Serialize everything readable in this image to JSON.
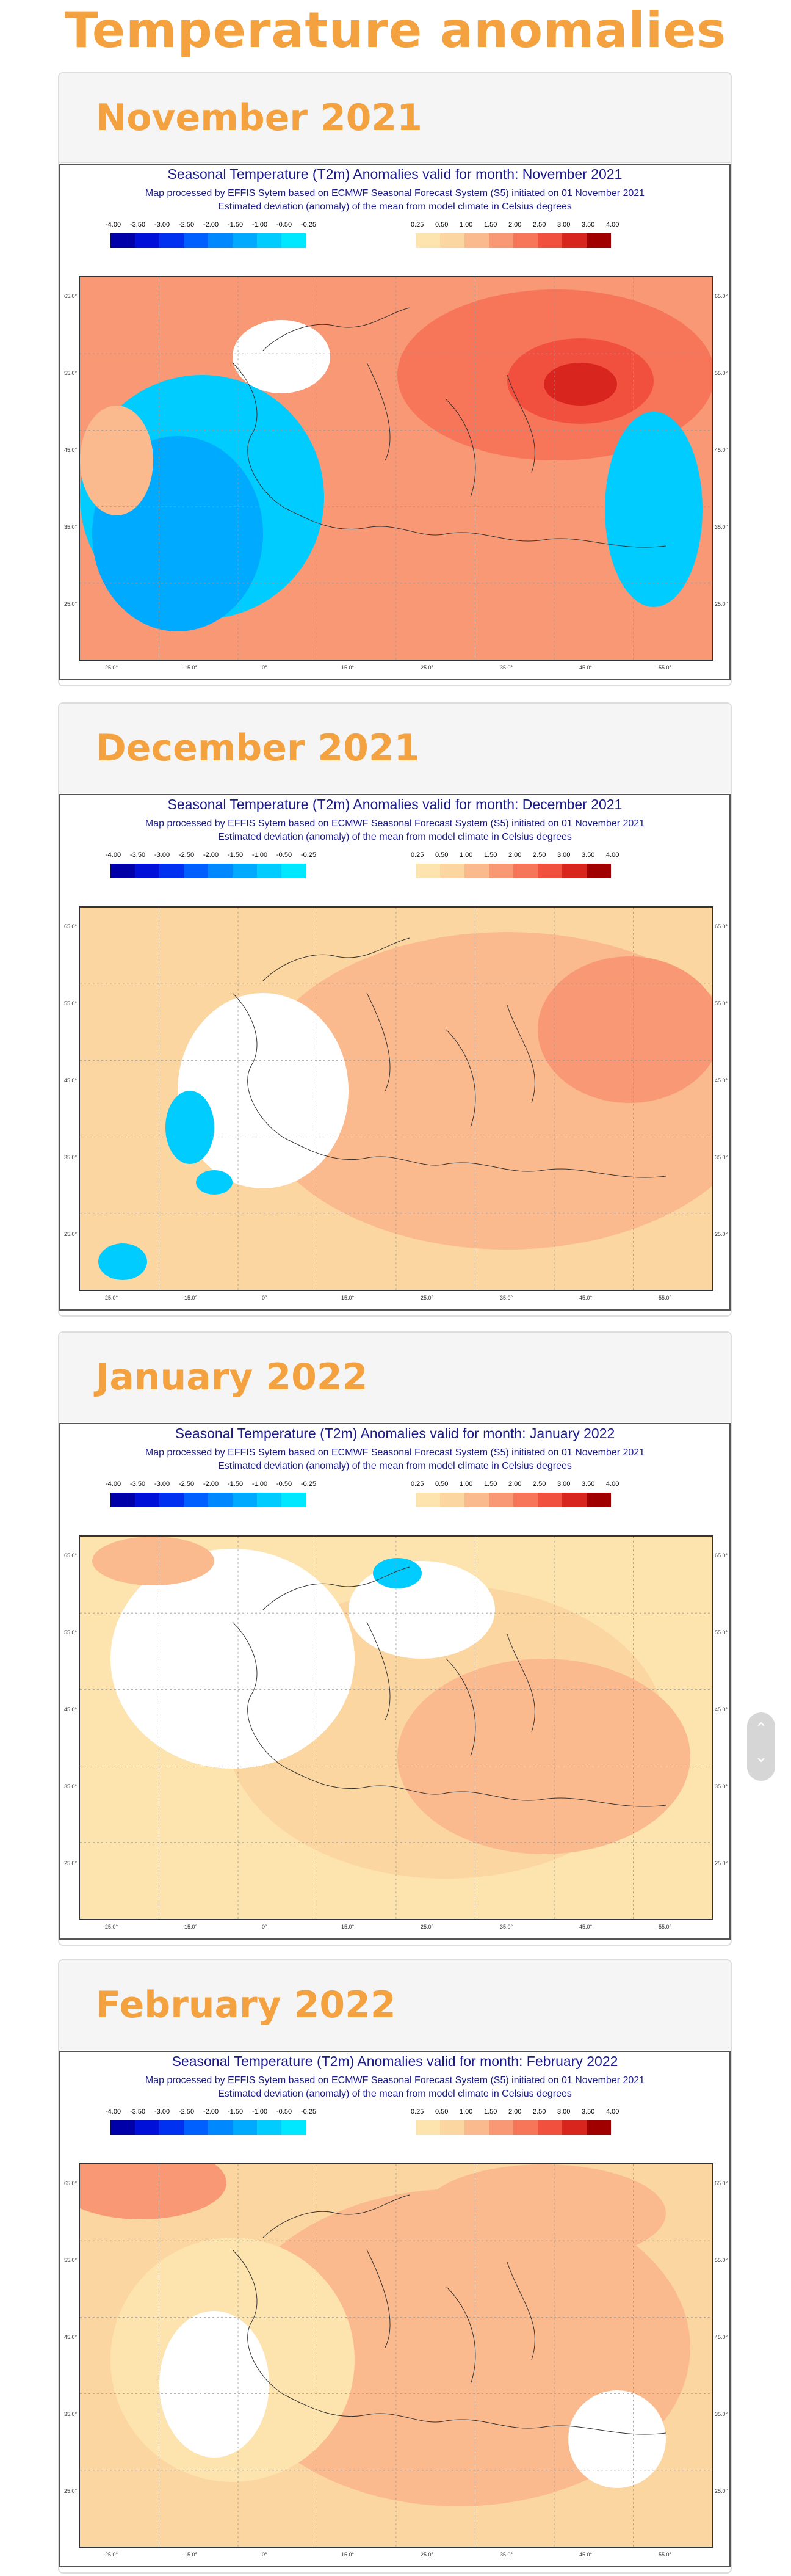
{
  "page": {
    "title": "Temperature anomalies"
  },
  "legend": {
    "negative": {
      "ticks": [
        "-4.00",
        "-3.50",
        "-3.00",
        "-2.50",
        "-2.00",
        "-1.50",
        "-1.00",
        "-0.50",
        "-0.25"
      ],
      "colors": [
        "#0000a8",
        "#0010d8",
        "#0030f0",
        "#0060ff",
        "#0088ff",
        "#00aaff",
        "#00ccff",
        "#00e8ff"
      ]
    },
    "positive": {
      "ticks": [
        "0.25",
        "0.50",
        "1.00",
        "1.50",
        "2.00",
        "2.50",
        "3.00",
        "3.50",
        "4.00"
      ],
      "colors": [
        "#fde3ae",
        "#fcd6a0",
        "#fbb98e",
        "#f99875",
        "#f77659",
        "#f2503f",
        "#d8261f",
        "#a00000"
      ]
    }
  },
  "longitude_labels": [
    "-25.0°",
    "-15.0°",
    "0°",
    "15.0°",
    "25.0°",
    "35.0°",
    "45.0°",
    "55.0°"
  ],
  "latitude_labels": [
    "65.0°",
    "55.0°",
    "45.0°",
    "35.0°",
    "25.0°"
  ],
  "panels": [
    {
      "title": "November 2021",
      "map": {
        "line1": "Seasonal Temperature (T2m) Anomalies valid for month: November 2021",
        "line2": "Map processed by EFFIS Sytem based on ECMWF Seasonal Forecast System (S5) initiated on 01 November 2021",
        "line3": "Estimated deviation (anomaly) of the mean from model climate in Celsius degrees"
      }
    },
    {
      "title": "December 2021",
      "map": {
        "line1": "Seasonal Temperature (T2m) Anomalies valid for month: December 2021",
        "line2": "Map processed by EFFIS Sytem based on ECMWF Seasonal Forecast System (S5) initiated on 01 November 2021",
        "line3": "Estimated deviation (anomaly) of the mean from model climate in Celsius degrees"
      }
    },
    {
      "title": "January 2022",
      "map": {
        "line1": "Seasonal Temperature (T2m) Anomalies valid for month: January 2022",
        "line2": "Map processed by EFFIS Sytem based on ECMWF Seasonal Forecast System (S5) initiated on 01 November 2021",
        "line3": "Estimated deviation (anomaly) of the mean from model climate in Celsius degrees"
      }
    },
    {
      "title": "February 2022",
      "map": {
        "line1": "Seasonal Temperature (T2m) Anomalies valid for month: February 2022",
        "line2": "Map processed by EFFIS Sytem based on ECMWF Seasonal Forecast System (S5) initiated on 01 November 2021",
        "line3": "Estimated deviation (anomaly) of the mean from model climate in Celsius degrees"
      }
    }
  ],
  "scroll_control": {
    "up_icon": "chevron-up-icon",
    "down_icon": "chevron-down-icon"
  }
}
